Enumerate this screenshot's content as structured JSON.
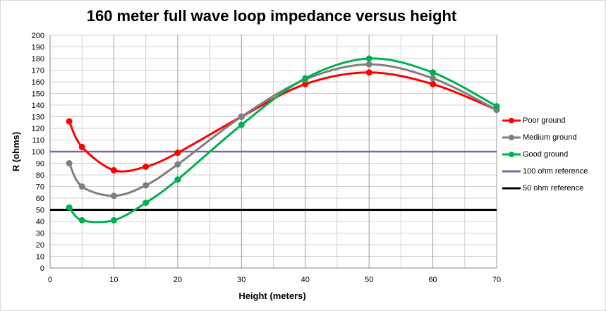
{
  "chart_data": {
    "type": "line",
    "title": "160 meter full wave loop impedance versus height",
    "xlabel": "Height (meters)",
    "ylabel": "R (ohms)",
    "xlim": [
      0,
      70
    ],
    "ylim": [
      0,
      200
    ],
    "x_ticks": [
      "0",
      "10",
      "20",
      "30",
      "40",
      "50",
      "60",
      "70"
    ],
    "y_ticks": [
      "0",
      "10",
      "20",
      "30",
      "40",
      "50",
      "60",
      "70",
      "80",
      "90",
      "100",
      "110",
      "120",
      "130",
      "140",
      "150",
      "160",
      "170",
      "180",
      "190",
      "200"
    ],
    "grid": true,
    "legend_position": "right",
    "series": [
      {
        "name": "Poor ground",
        "color": "#ff0000",
        "markers": true,
        "x": [
          3,
          5,
          10,
          15,
          20,
          30,
          40,
          50,
          60,
          70
        ],
        "y": [
          126,
          104,
          84,
          87,
          99,
          130,
          158,
          168,
          158,
          136
        ]
      },
      {
        "name": "Medium ground",
        "color": "#7f7f7f",
        "markers": true,
        "x": [
          3,
          5,
          10,
          15,
          20,
          30,
          40,
          50,
          60,
          70
        ],
        "y": [
          90,
          70,
          62,
          71,
          89,
          130,
          162,
          175,
          163,
          136
        ]
      },
      {
        "name": "Good ground",
        "color": "#00b050",
        "markers": true,
        "x": [
          3,
          5,
          10,
          15,
          20,
          30,
          40,
          50,
          60,
          70
        ],
        "y": [
          52,
          41,
          41,
          56,
          76,
          123,
          163,
          180,
          168,
          139
        ]
      },
      {
        "name": "100 ohm reference",
        "color": "#8064a2",
        "markers": false,
        "x": [
          0,
          70
        ],
        "y": [
          100,
          100
        ]
      },
      {
        "name": "50 ohm reference",
        "color": "#000000",
        "markers": false,
        "x": [
          0,
          70
        ],
        "y": [
          50,
          50
        ]
      }
    ]
  }
}
